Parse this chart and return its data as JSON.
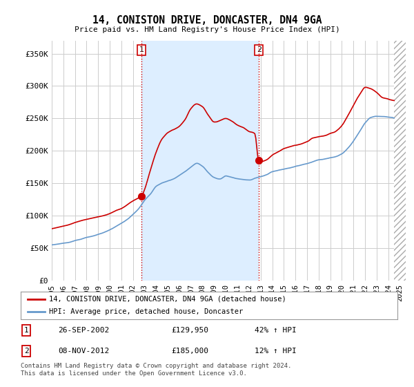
{
  "title": "14, CONISTON DRIVE, DONCASTER, DN4 9GA",
  "subtitle": "Price paid vs. HM Land Registry's House Price Index (HPI)",
  "background_color": "#ffffff",
  "plot_bg_color": "#ffffff",
  "grid_color": "#cccccc",
  "ylabel_ticks": [
    "£0",
    "£50K",
    "£100K",
    "£150K",
    "£200K",
    "£250K",
    "£300K",
    "£350K"
  ],
  "ytick_values": [
    0,
    50000,
    100000,
    150000,
    200000,
    250000,
    300000,
    350000
  ],
  "ylim": [
    0,
    370000
  ],
  "xlim_start": 1995.0,
  "xlim_end": 2025.5,
  "sale1_x": 2002.74,
  "sale1_y": 129950,
  "sale2_x": 2012.85,
  "sale2_y": 185000,
  "sale1_date": "26-SEP-2002",
  "sale1_price": "£129,950",
  "sale1_hpi": "42% ↑ HPI",
  "sale2_date": "08-NOV-2012",
  "sale2_price": "£185,000",
  "sale2_hpi": "12% ↑ HPI",
  "red_color": "#cc0000",
  "blue_color": "#6699cc",
  "shade_color": "#ddeeff",
  "legend_label1": "14, CONISTON DRIVE, DONCASTER, DN4 9GA (detached house)",
  "legend_label2": "HPI: Average price, detached house, Doncaster",
  "footnote": "Contains HM Land Registry data © Crown copyright and database right 2024.\nThis data is licensed under the Open Government Licence v3.0."
}
